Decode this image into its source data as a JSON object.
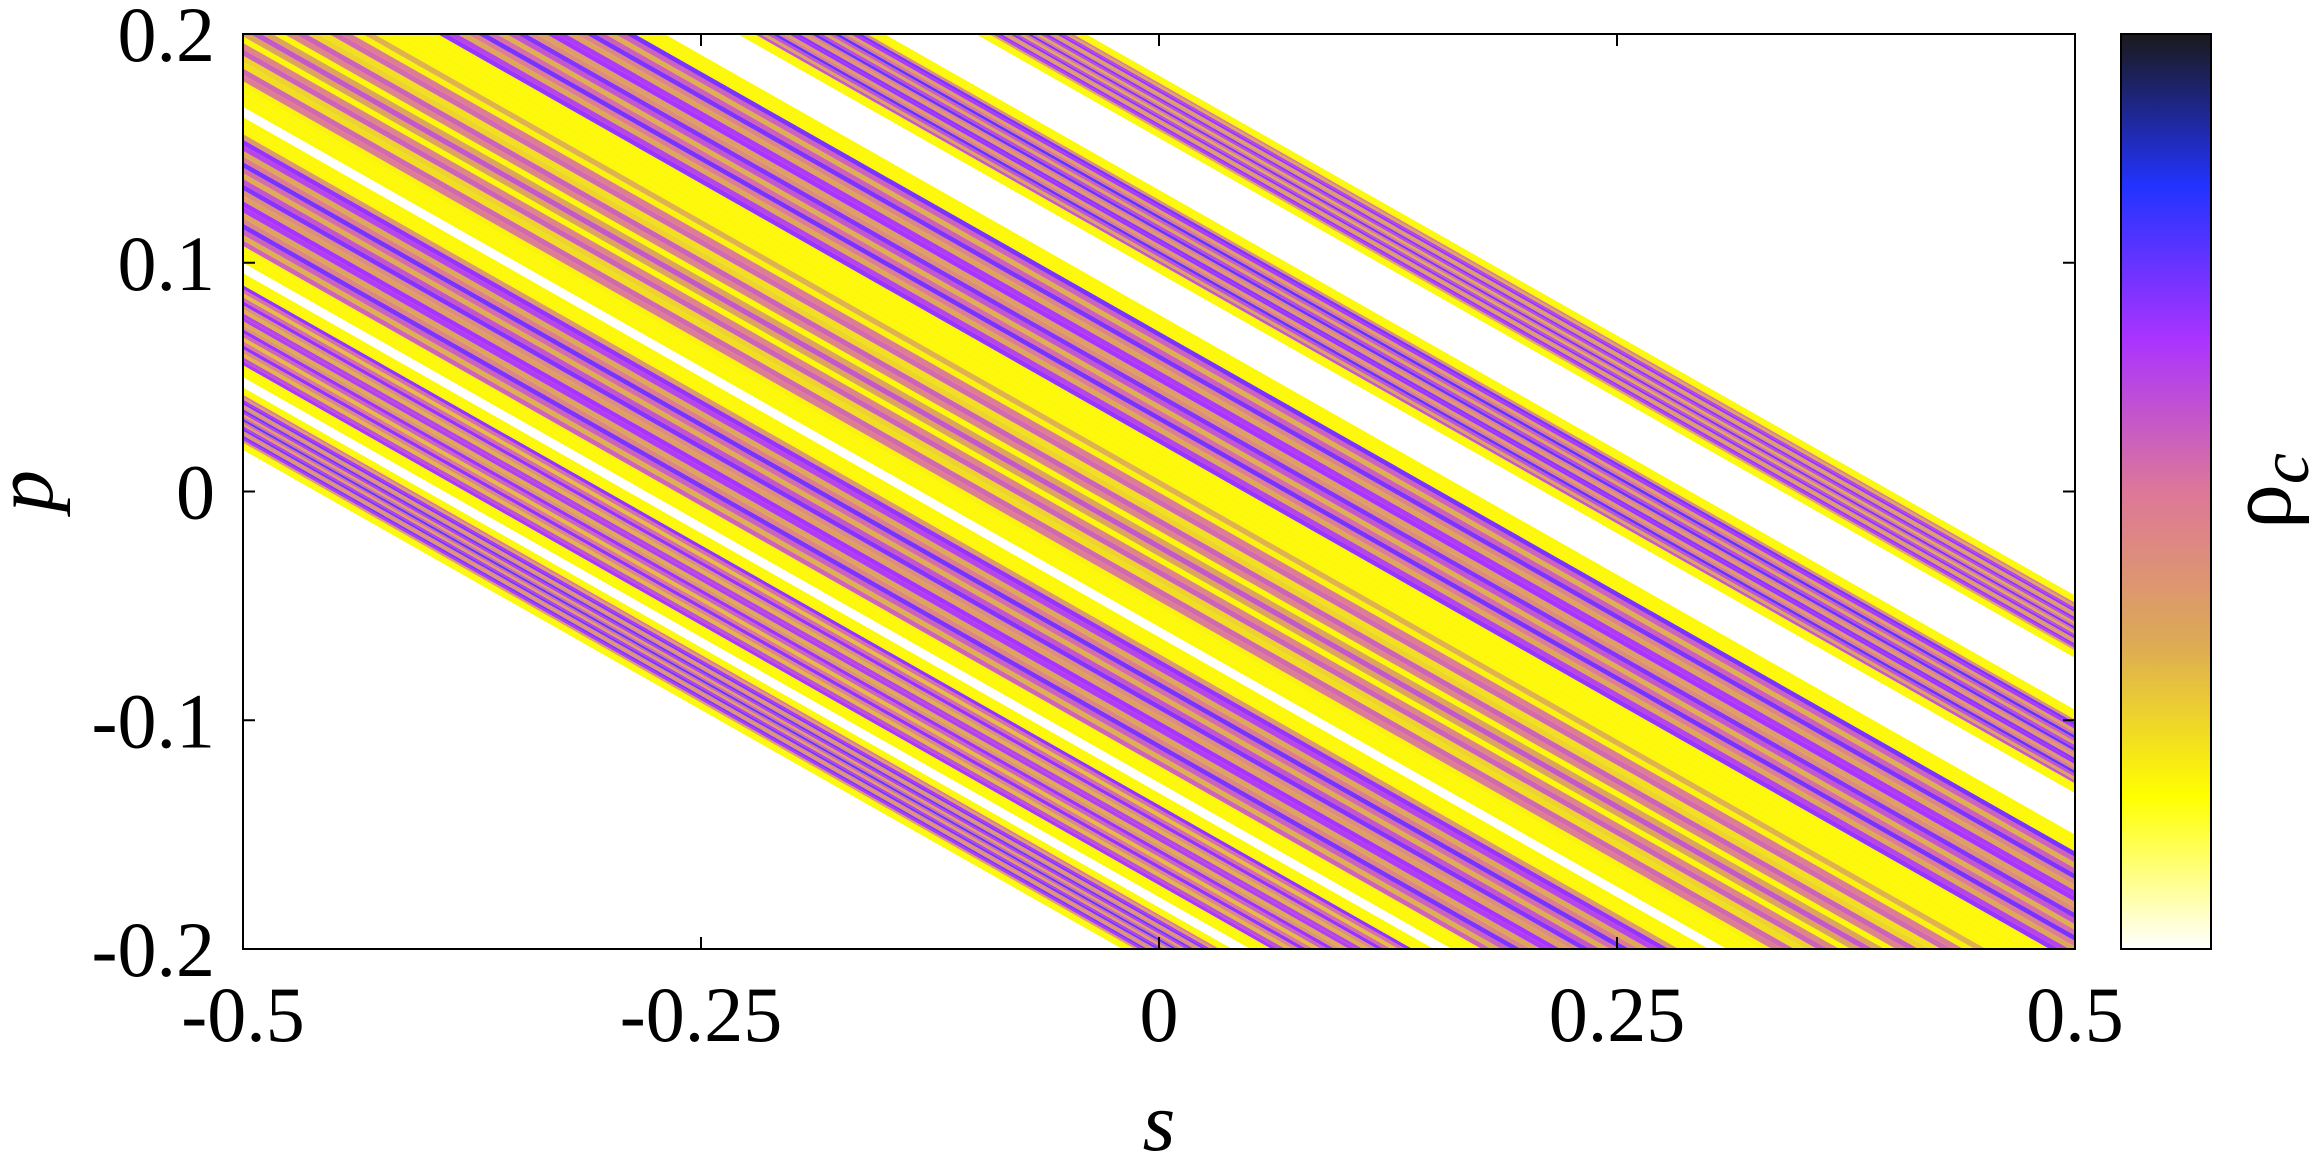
{
  "chart_data": {
    "type": "heatmap",
    "title": "",
    "xlabel": "s",
    "ylabel": "p",
    "xlim": [
      -0.5,
      0.5
    ],
    "ylim": [
      -0.2,
      0.2
    ],
    "x_ticks": [
      -0.5,
      -0.25,
      0,
      0.25,
      0.5
    ],
    "x_tick_labels": [
      "-0.5",
      "-0.25",
      "0",
      "0.25",
      "0.5"
    ],
    "y_ticks": [
      -0.2,
      -0.1,
      0,
      0.1,
      0.2
    ],
    "y_tick_labels": [
      "-0.2",
      "-0.1",
      "0",
      "0.1",
      "0.2"
    ],
    "grid": false,
    "background_color": "#ffffff",
    "colorbar": {
      "label_main": "ρ",
      "label_sub": "c",
      "position": "right",
      "colors_low_to_high": [
        "#ffffff",
        "#ffff00",
        "#ddaa55",
        "#dd7799",
        "#aa33ff",
        "#2233ff",
        "#1a1a1a"
      ]
    },
    "bands_description": "Diagonal stripes of constant s + 2.2·p pattern; colors sampled along stripes from colorbar",
    "bands": [
      {
        "center_s": -0.43,
        "width": 0.06,
        "color_level": 0.55
      },
      {
        "center_s": -0.34,
        "width": 0.1,
        "color_level": 0.45
      },
      {
        "center_s": -0.21,
        "width": 0.14,
        "color_level": 0.5
      },
      {
        "center_s": -0.05,
        "width": 0.16,
        "color_level": 0.25
      },
      {
        "center_s": 0.1,
        "width": 0.14,
        "color_level": 0.5
      },
      {
        "center_s": 0.25,
        "width": 0.08,
        "color_level": 0.55
      },
      {
        "center_s": 0.37,
        "width": 0.06,
        "color_level": 0.5
      }
    ]
  }
}
